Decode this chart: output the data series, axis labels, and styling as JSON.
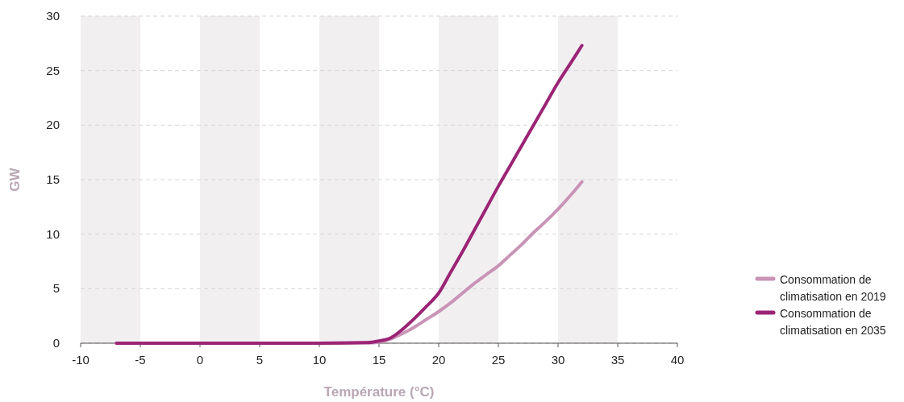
{
  "chart_data": {
    "type": "line",
    "xlabel": "Température (°C)",
    "ylabel": "GW",
    "xlim": [
      -10,
      40
    ],
    "xticks": [
      -10,
      -5,
      0,
      5,
      10,
      15,
      20,
      25,
      30,
      35,
      40
    ],
    "ylim": [
      0,
      30
    ],
    "yticks": [
      0,
      5,
      10,
      15,
      20,
      25,
      30
    ],
    "grid": "y",
    "legend": "right",
    "marker": "none",
    "line_style": "solid",
    "bands": [
      {
        "axis": "x",
        "from": -10,
        "to": -5,
        "color": "#f2eff1"
      },
      {
        "axis": "x",
        "from": 0,
        "to": 5,
        "color": "#f2eff1"
      },
      {
        "axis": "x",
        "from": 10,
        "to": 15,
        "color": "#f2eff1"
      },
      {
        "axis": "x",
        "from": 20,
        "to": 25,
        "color": "#f2eff1"
      },
      {
        "axis": "x",
        "from": 30,
        "to": 35,
        "color": "#f2eff1"
      }
    ],
    "x": [
      -7,
      0,
      10,
      14,
      15,
      16,
      17,
      18,
      19,
      20,
      21,
      22,
      23,
      24,
      25,
      26,
      27,
      28,
      29,
      30,
      31,
      32
    ],
    "series": [
      {
        "name": "Consommation de climatisation en 2019",
        "color": "#c994b6",
        "values": [
          0,
          0,
          0,
          0.03,
          0.1,
          0.4,
          0.9,
          1.5,
          2.2,
          2.9,
          3.7,
          4.6,
          5.5,
          6.3,
          7.1,
          8.1,
          9.1,
          10.2,
          11.2,
          12.3,
          13.5,
          14.8
        ]
      },
      {
        "name": "Consommation de climatisation en 2035",
        "color": "#9b2475",
        "values": [
          0,
          0,
          0,
          0.05,
          0.2,
          0.5,
          1.3,
          2.3,
          3.4,
          4.6,
          6.5,
          8.4,
          10.4,
          12.4,
          14.4,
          16.3,
          18.2,
          20.1,
          22.0,
          23.9,
          25.6,
          27.3
        ]
      }
    ]
  }
}
